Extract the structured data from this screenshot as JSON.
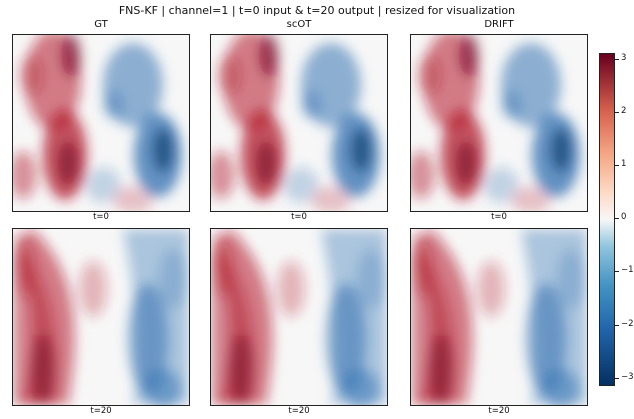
{
  "figure": {
    "suptitle": "FNS-KF | channel=1 | t=0 input & t=20 output | resized for visualization",
    "columns": [
      "GT",
      "scOT",
      "DRIFT"
    ],
    "rows": [
      "t=0",
      "t=20"
    ],
    "colormap": "RdBu_r",
    "colorbar": {
      "ticks": [
        3,
        2,
        1,
        0,
        -1,
        -2,
        -3
      ],
      "tick_labels": [
        "3",
        "2",
        "1",
        "0",
        "−1",
        "−2",
        "−3"
      ],
      "range": [
        -3.1,
        3.1
      ]
    },
    "colors": {
      "red": "#b2182b",
      "blue": "#2166ac",
      "white": "#f7f7f7"
    }
  }
}
